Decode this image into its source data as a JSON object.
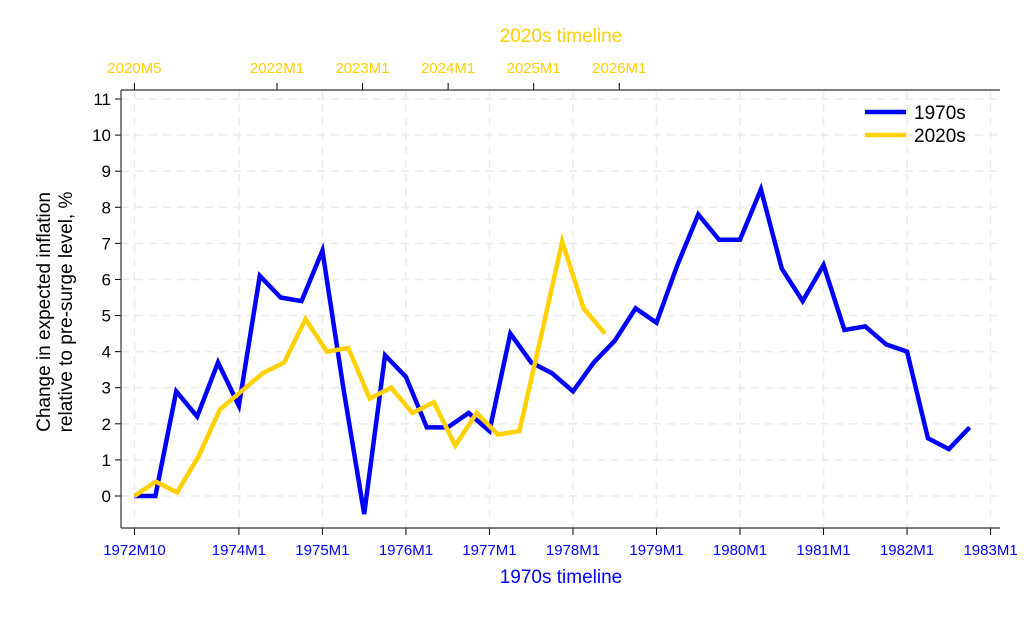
{
  "chart_data": {
    "type": "line",
    "ylabel_lines": [
      "Change in expected inflation",
      "relative to pre-surge level, %"
    ],
    "xlabel_bottom": "1970s timeline",
    "xlabel_top": "2020s timeline",
    "ylim": [
      -1,
      11.3
    ],
    "yticks": [
      0,
      1,
      2,
      3,
      4,
      5,
      6,
      7,
      8,
      9,
      10,
      11
    ],
    "grid": true,
    "legend_position": "top-right",
    "bottom_axis": {
      "ticks": [
        {
          "label": "1972M10",
          "year": 1972,
          "month": 10
        },
        {
          "label": "1974M1",
          "year": 1974,
          "month": 1
        },
        {
          "label": "1975M1",
          "year": 1975,
          "month": 1
        },
        {
          "label": "1976M1",
          "year": 1976,
          "month": 1
        },
        {
          "label": "1977M1",
          "year": 1977,
          "month": 1
        },
        {
          "label": "1978M1",
          "year": 1978,
          "month": 1
        },
        {
          "label": "1979M1",
          "year": 1979,
          "month": 1
        },
        {
          "label": "1980M1",
          "year": 1980,
          "month": 1
        },
        {
          "label": "1981M1",
          "year": 1981,
          "month": 1
        },
        {
          "label": "1982M1",
          "year": 1982,
          "month": 1
        },
        {
          "label": "1983M1",
          "year": 1983,
          "month": 1
        }
      ]
    },
    "top_axis": {
      "ticks": [
        {
          "label": "2020M5",
          "year": 2020,
          "month": 5
        },
        {
          "label": "2022M1",
          "year": 2022,
          "month": 1
        },
        {
          "label": "2023M1",
          "year": 2023,
          "month": 1
        },
        {
          "label": "2024M1",
          "year": 2024,
          "month": 1
        },
        {
          "label": "2025M1",
          "year": 2025,
          "month": 1
        },
        {
          "label": "2026M1",
          "year": 2026,
          "month": 1
        }
      ]
    },
    "series": [
      {
        "name": "1970s",
        "color": "#0000FF",
        "axis": "bottom",
        "start": {
          "year": 1972,
          "month": 10
        },
        "step_months": 3,
        "values": [
          0,
          0,
          2.9,
          2.2,
          3.7,
          2.5,
          6.1,
          5.5,
          5.4,
          6.8,
          3.0,
          -0.5,
          3.9,
          3.3,
          1.9,
          1.9,
          2.3,
          1.8,
          4.5,
          3.7,
          3.4,
          2.9,
          3.7,
          4.3,
          5.2,
          4.8,
          6.4,
          7.8,
          7.1,
          7.1,
          8.5,
          6.3,
          5.4,
          6.4,
          4.6,
          4.7,
          4.2,
          4.0,
          1.6,
          1.3,
          1.9
        ]
      },
      {
        "name": "2020s",
        "color": "#FFD100",
        "axis": "top",
        "start": {
          "year": 2020,
          "month": 5
        },
        "step_months": 3,
        "values": [
          0,
          0.4,
          0.1,
          1.1,
          2.4,
          2.9,
          3.4,
          3.7,
          4.9,
          4.0,
          4.1,
          2.7,
          3.0,
          2.3,
          2.6,
          1.4,
          2.3,
          1.7,
          1.8,
          4.4,
          7.05,
          5.2,
          4.5
        ]
      }
    ]
  }
}
